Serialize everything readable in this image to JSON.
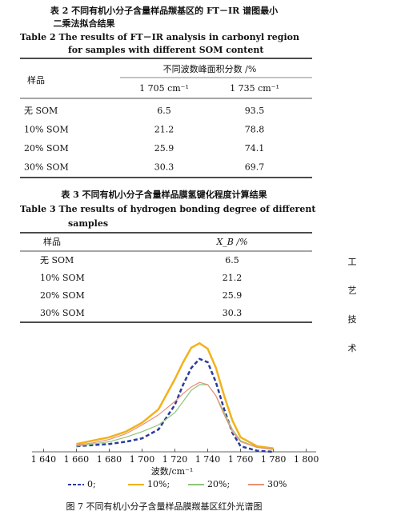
{
  "table2": {
    "caption_cn": [
      "表 2  不同有机小分子含量样品羰基区的 FT－IR 谱图最小",
      "二乘法拟合结果"
    ],
    "caption_en": [
      "Table 2  The results of FT－IR analysis in carbonyl region",
      "for samples with different SOM content"
    ],
    "header": {
      "sample": "样品",
      "group": "不同波数峰面积分数 /%",
      "cols": [
        "1 705 cm⁻¹",
        "1 735 cm⁻¹"
      ]
    },
    "rows": [
      [
        "无 SOM",
        "6.5",
        "93.5"
      ],
      [
        "10% SOM",
        "21.2",
        "78.8"
      ],
      [
        "20% SOM",
        "25.9",
        "74.1"
      ],
      [
        "30% SOM",
        "30.3",
        "69.7"
      ]
    ]
  },
  "table3": {
    "caption_cn": "表 3  不同有机小分子含量样品膜氢键化程度计算结果",
    "caption_en": [
      "Table 3  The results of hydrogen bonding degree of different",
      "samples"
    ],
    "header": [
      "样品",
      "X_B /%"
    ],
    "rows": [
      [
        "无 SOM",
        "6.5"
      ],
      [
        "10% SOM",
        "21.2"
      ],
      [
        "20% SOM",
        "25.9"
      ],
      [
        "30% SOM",
        "30.3"
      ]
    ]
  },
  "side_text": [
    "工",
    "艺",
    "技",
    "术"
  ],
  "chart_data": {
    "type": "line",
    "x_label": "波数/cm⁻¹",
    "caption": "图 7  不同有机小分子含量样品膜羰基区红外光谱图",
    "x": [
      1660,
      1670,
      1680,
      1690,
      1700,
      1710,
      1720,
      1725,
      1730,
      1735,
      1740,
      1745,
      1750,
      1755,
      1760,
      1770,
      1780
    ],
    "xlim": [
      1633,
      1806
    ],
    "ylim": [
      0,
      1
    ],
    "xticks": [
      {
        "value": 1640,
        "label": "1 640"
      },
      {
        "value": 1660,
        "label": "1 660"
      },
      {
        "value": 1680,
        "label": "1 680"
      },
      {
        "value": 1700,
        "label": "1 700"
      },
      {
        "value": 1720,
        "label": "1 720"
      },
      {
        "value": 1740,
        "label": "1 740"
      },
      {
        "value": 1760,
        "label": "1 760"
      },
      {
        "value": 1780,
        "label": "1 780"
      },
      {
        "value": 1800,
        "label": "1 800"
      }
    ],
    "series": [
      {
        "name": "0;",
        "color": "#2a3c9c",
        "dash": true,
        "values": [
          0.05,
          0.06,
          0.07,
          0.09,
          0.12,
          0.2,
          0.42,
          0.6,
          0.75,
          0.83,
          0.8,
          0.62,
          0.38,
          0.17,
          0.05,
          0.01,
          0
        ]
      },
      {
        "name": "10%;",
        "color": "#f2b21b",
        "dash": false,
        "values": [
          0.07,
          0.1,
          0.13,
          0.18,
          0.26,
          0.38,
          0.65,
          0.8,
          0.93,
          0.97,
          0.92,
          0.75,
          0.5,
          0.28,
          0.13,
          0.05,
          0.03
        ]
      },
      {
        "name": "20%;",
        "color": "#8fc47a",
        "dash": false,
        "values": [
          0.05,
          0.07,
          0.09,
          0.13,
          0.18,
          0.24,
          0.35,
          0.45,
          0.55,
          0.6,
          0.6,
          0.5,
          0.35,
          0.2,
          0.1,
          0.04,
          0.02
        ]
      },
      {
        "name": "30%",
        "color": "#e8907a",
        "dash": false,
        "values": [
          0.06,
          0.08,
          0.11,
          0.16,
          0.24,
          0.33,
          0.45,
          0.52,
          0.58,
          0.62,
          0.6,
          0.5,
          0.33,
          0.18,
          0.09,
          0.04,
          0.02
        ]
      }
    ]
  }
}
